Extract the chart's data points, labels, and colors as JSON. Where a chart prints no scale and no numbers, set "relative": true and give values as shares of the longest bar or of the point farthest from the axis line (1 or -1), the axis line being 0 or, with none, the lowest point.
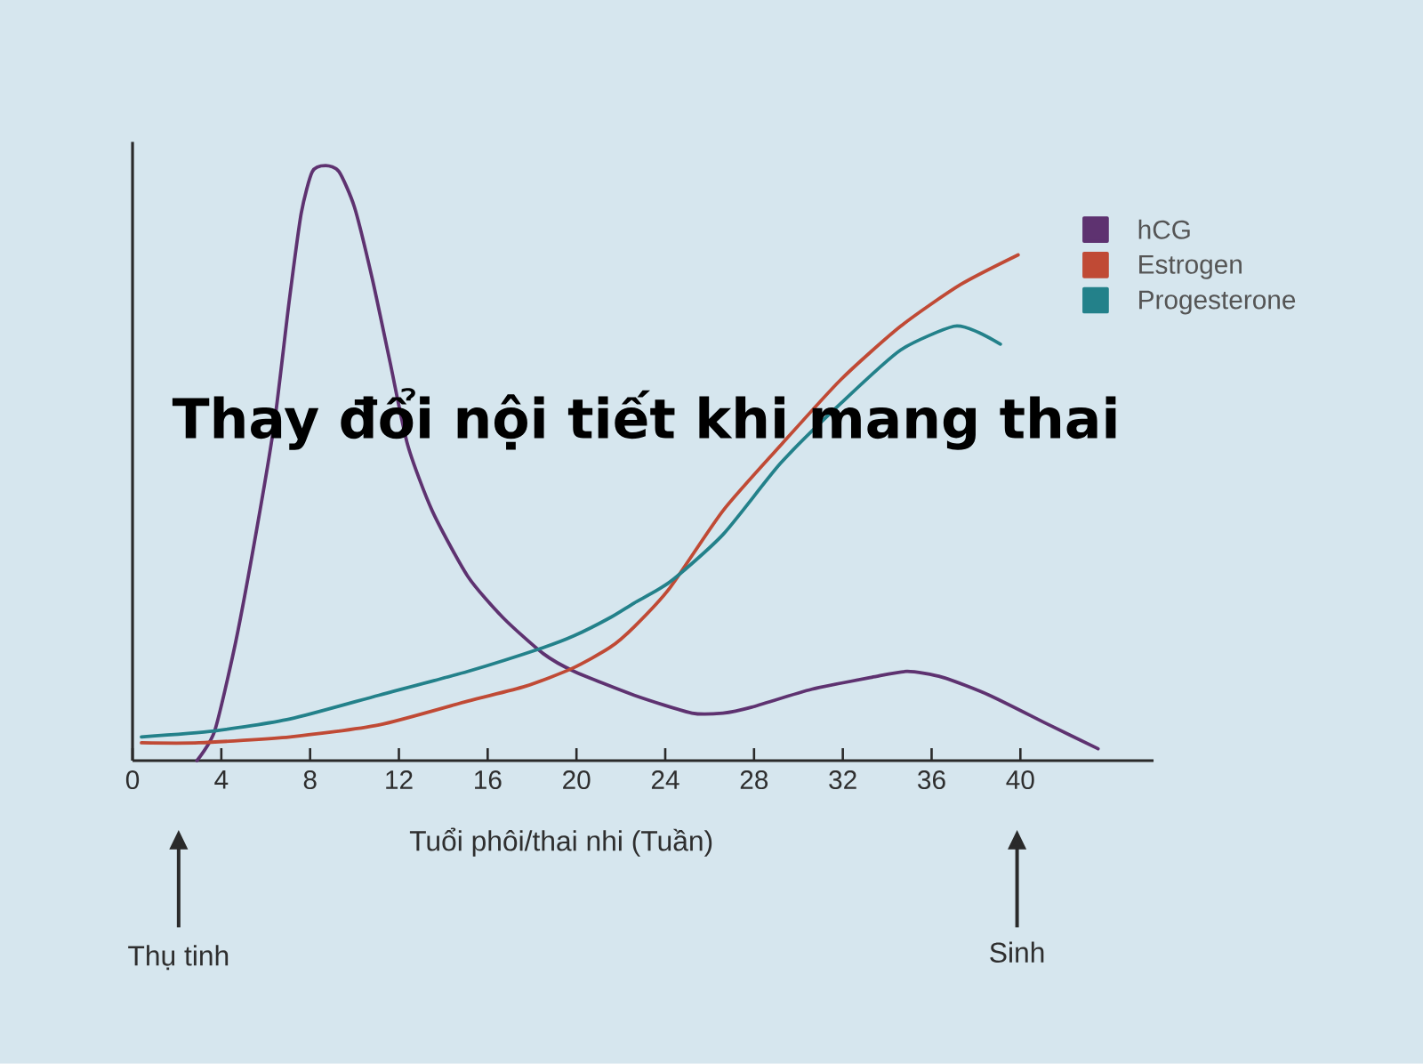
{
  "chart_data": {
    "type": "line",
    "relative": true,
    "title": "Thay đổi nội tiết khi mang thai",
    "xlabel": "Tuổi phôi/thai nhi (Tuần)",
    "xlim": [
      0,
      46
    ],
    "xticks": [
      0,
      4,
      8,
      12,
      16,
      20,
      24,
      28,
      32,
      36,
      40
    ],
    "legend": "top right",
    "line_style": "solid",
    "series": [
      {
        "name": "hCG",
        "color": "#5e3270",
        "x": [
          2.9,
          3.7,
          4.65,
          5.6,
          6.4,
          7.05,
          7.6,
          8.1,
          8.7,
          9.3,
          10.0,
          10.8,
          11.6,
          12.4,
          13.5,
          15.1,
          16.7,
          18.5,
          19.9,
          22.6,
          25.2,
          26.6,
          27.9,
          30.6,
          33.3,
          34.9,
          36.5,
          38.6,
          41.3,
          43.5
        ],
        "values": [
          0,
          0.05,
          0.2,
          0.39,
          0.57,
          0.77,
          0.92,
          0.99,
          1,
          0.99,
          0.93,
          0.81,
          0.67,
          0.53,
          0.42,
          0.31,
          0.24,
          0.18,
          0.15,
          0.11,
          0.08,
          0.08,
          0.09,
          0.12,
          0.14,
          0.15,
          0.14,
          0.11,
          0.06,
          0.02
        ]
      },
      {
        "name": "Estrogen",
        "color": "#c04a35",
        "x": [
          0.4,
          3,
          7.1,
          11.1,
          15.1,
          17.7,
          19.8,
          21.5,
          22.6,
          24.2,
          26.6,
          29.2,
          31.9,
          34.6,
          37.3,
          39.9
        ],
        "values": [
          0.03,
          0.03,
          0.04,
          0.06,
          0.1,
          0.125,
          0.155,
          0.19,
          0.225,
          0.29,
          0.42,
          0.53,
          0.64,
          0.73,
          0.8,
          0.85
        ]
      },
      {
        "name": "Progesterone",
        "color": "#23818a",
        "x": [
          0.4,
          3.7,
          7.1,
          11.1,
          15.1,
          18.5,
          19.9,
          21.5,
          22.6,
          24.2,
          26.6,
          29.2,
          31.9,
          34.6,
          37.0,
          38.1,
          39.1
        ],
        "values": [
          0.04,
          0.05,
          0.07,
          0.11,
          0.15,
          0.19,
          0.21,
          0.24,
          0.265,
          0.3,
          0.38,
          0.5,
          0.6,
          0.69,
          0.73,
          0.72,
          0.7
        ]
      }
    ],
    "annotations": [
      "Thụ tinh",
      "Sinh"
    ]
  }
}
